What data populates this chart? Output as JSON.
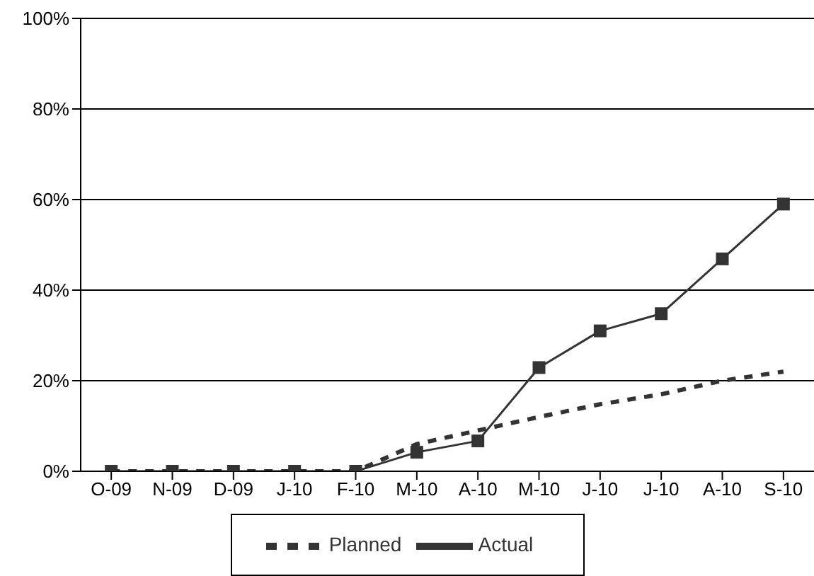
{
  "chart_data": {
    "type": "line",
    "categories": [
      "O-09",
      "N-09",
      "D-09",
      "J-10",
      "F-10",
      "M-10",
      "A-10",
      "M-10",
      "J-10",
      "J-10",
      "A-10",
      "S-10"
    ],
    "series": [
      {
        "name": "Planned",
        "color": "#333333",
        "line_style": "dashed",
        "marker": "none",
        "values": [
          0,
          0,
          0,
          0,
          0,
          6,
          9,
          12,
          14.8,
          17,
          20,
          22
        ]
      },
      {
        "name": "Actual",
        "color": "#333333",
        "line_style": "solid",
        "marker": "square",
        "values": [
          0,
          0,
          0,
          0,
          0,
          4.2,
          6.7,
          22.9,
          31,
          34.8,
          46.9,
          59
        ]
      }
    ],
    "ylim": [
      0,
      100
    ],
    "yticks": [
      {
        "value": 0,
        "label": "0%"
      },
      {
        "value": 20,
        "label": "20%"
      },
      {
        "value": 40,
        "label": "40%"
      },
      {
        "value": 60,
        "label": "60%"
      },
      {
        "value": 80,
        "label": "80%"
      },
      {
        "value": 100,
        "label": "100%"
      }
    ],
    "grid": "y",
    "legend": "bottom"
  }
}
